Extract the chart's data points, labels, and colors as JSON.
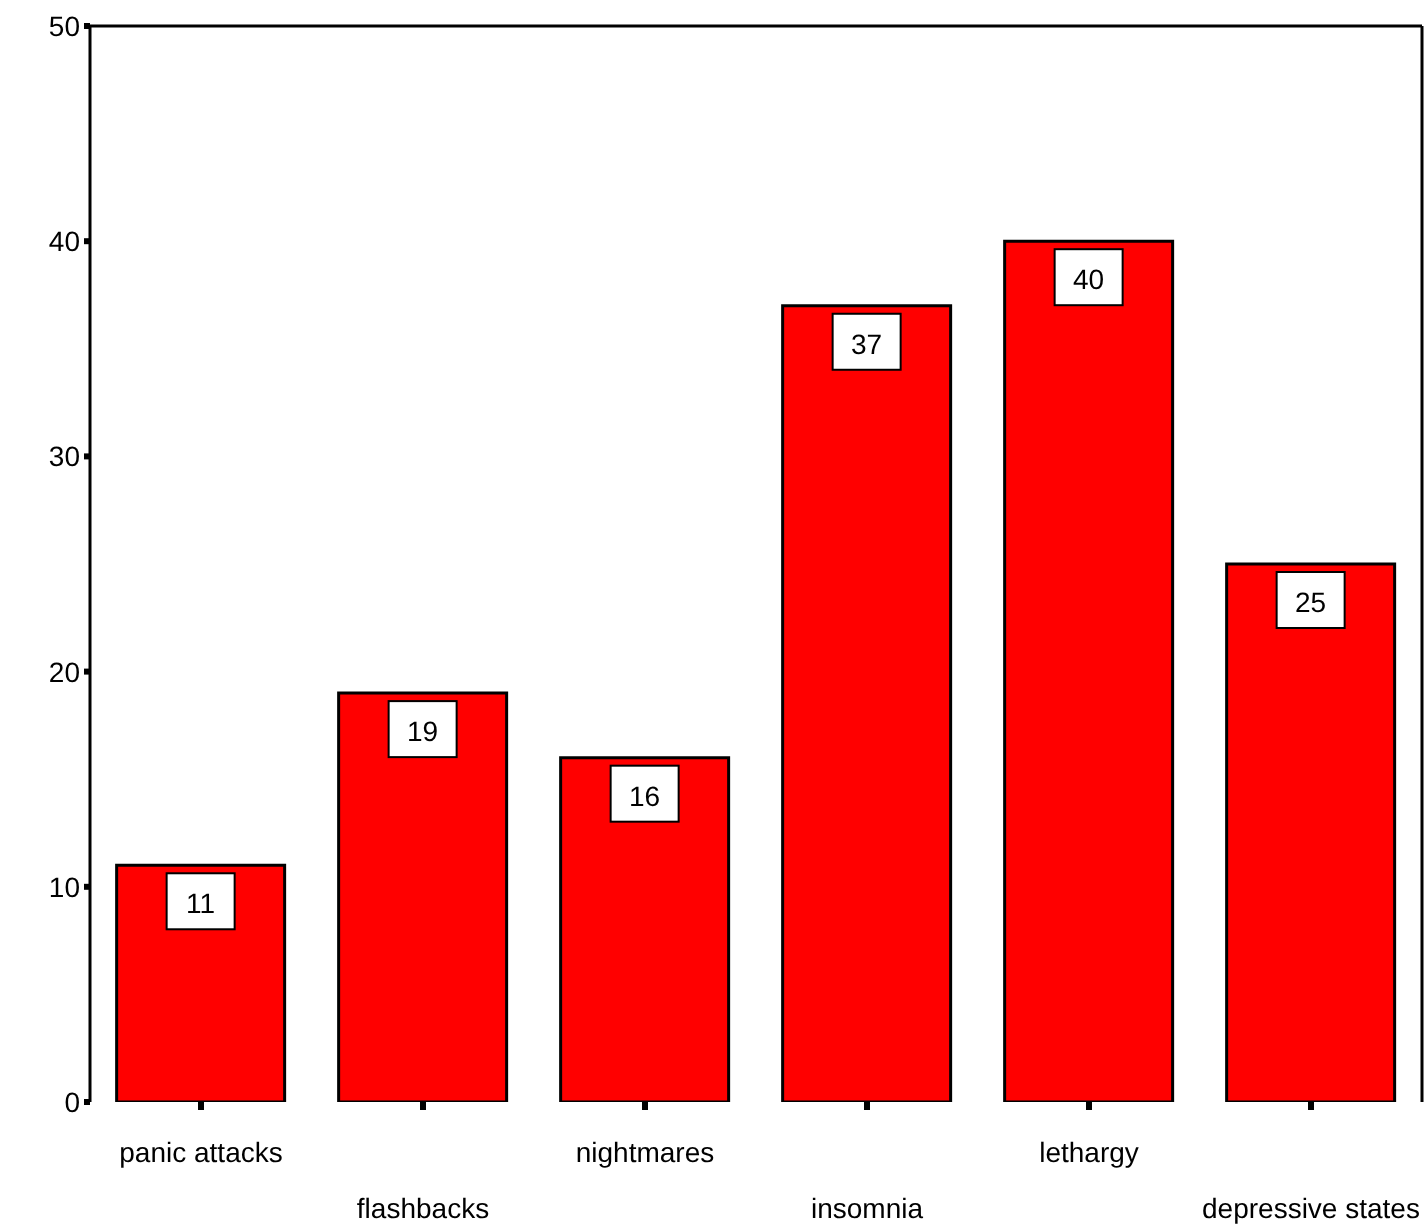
{
  "chart_data": {
    "type": "bar",
    "categories": [
      "panic attacks",
      "flashbacks",
      "nightmares",
      "insomnia",
      "lethargy",
      "depressive states"
    ],
    "values": [
      11,
      19,
      16,
      37,
      40,
      25
    ],
    "color": "#ff0000",
    "ylim": [
      0,
      50
    ],
    "yticks": [
      0,
      10,
      20,
      30,
      40,
      50
    ],
    "grid": false,
    "legend": false,
    "data_labels": true
  }
}
